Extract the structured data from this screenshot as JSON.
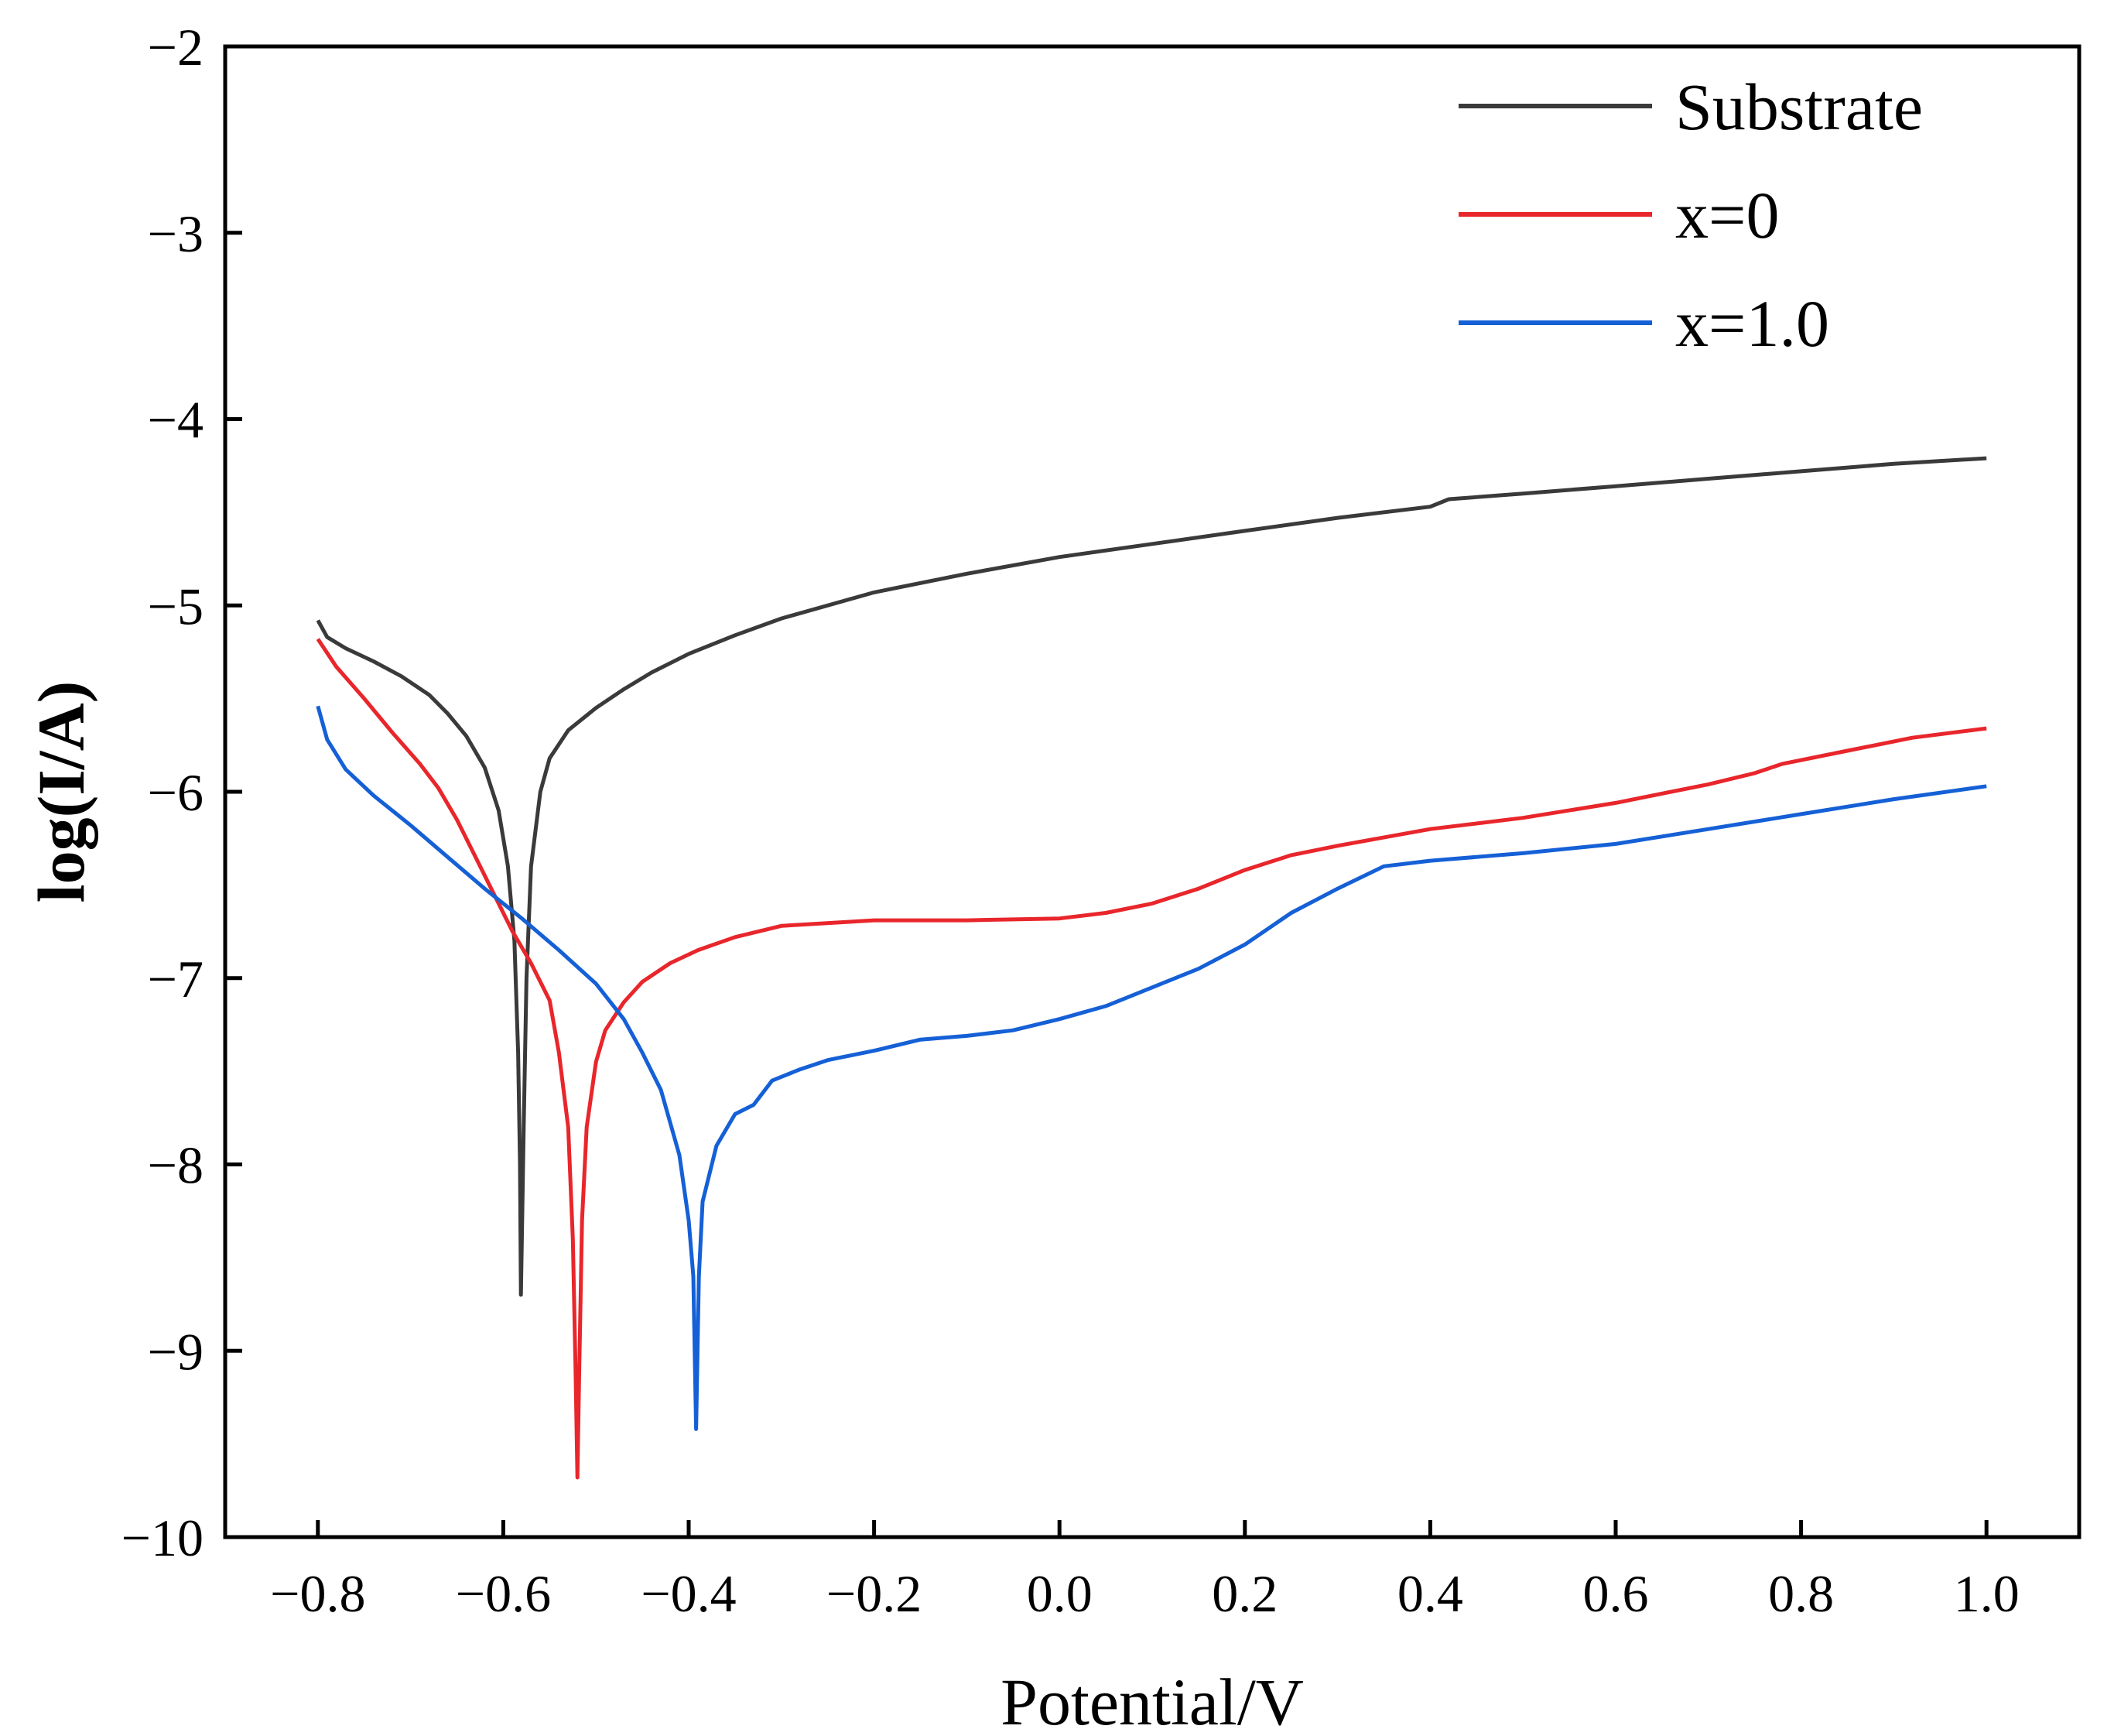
{
  "chart_data": {
    "type": "line",
    "title": "",
    "xlabel": "Potential/V",
    "ylabel": "log(I/A)",
    "xlim": [
      -0.9,
      1.1
    ],
    "ylim": [
      -10,
      -2
    ],
    "grid": false,
    "legend_position": "top-right",
    "x_ticks": [
      {
        "value": -0.8,
        "label": "−0.8"
      },
      {
        "value": -0.6,
        "label": "−0.6"
      },
      {
        "value": -0.4,
        "label": "−0.4"
      },
      {
        "value": -0.2,
        "label": "−0.2"
      },
      {
        "value": 0.0,
        "label": "0.0"
      },
      {
        "value": 0.2,
        "label": "0.2"
      },
      {
        "value": 0.4,
        "label": "0.4"
      },
      {
        "value": 0.6,
        "label": "0.6"
      },
      {
        "value": 0.8,
        "label": "0.8"
      },
      {
        "value": 1.0,
        "label": "1.0"
      }
    ],
    "y_ticks": [
      {
        "value": -2,
        "label": "−2"
      },
      {
        "value": -3,
        "label": "−3"
      },
      {
        "value": -4,
        "label": "−4"
      },
      {
        "value": -5,
        "label": "−5"
      },
      {
        "value": -6,
        "label": "−6"
      },
      {
        "value": -7,
        "label": "−7"
      },
      {
        "value": -8,
        "label": "−8"
      },
      {
        "value": -9,
        "label": "−9"
      },
      {
        "value": -10,
        "label": "−10"
      }
    ],
    "series": [
      {
        "name": "Substrate",
        "color": "#3a3a3a",
        "points": [
          [
            -0.8,
            -5.08
          ],
          [
            -0.79,
            -5.17
          ],
          [
            -0.77,
            -5.23
          ],
          [
            -0.74,
            -5.3
          ],
          [
            -0.71,
            -5.38
          ],
          [
            -0.68,
            -5.48
          ],
          [
            -0.66,
            -5.58
          ],
          [
            -0.64,
            -5.7
          ],
          [
            -0.62,
            -5.87
          ],
          [
            -0.605,
            -6.1
          ],
          [
            -0.595,
            -6.4
          ],
          [
            -0.588,
            -6.8
          ],
          [
            -0.584,
            -7.4
          ],
          [
            -0.582,
            -8.0
          ],
          [
            -0.581,
            -8.7
          ],
          [
            -0.578,
            -7.8
          ],
          [
            -0.575,
            -7.0
          ],
          [
            -0.57,
            -6.4
          ],
          [
            -0.56,
            -6.0
          ],
          [
            -0.55,
            -5.82
          ],
          [
            -0.53,
            -5.67
          ],
          [
            -0.5,
            -5.55
          ],
          [
            -0.47,
            -5.45
          ],
          [
            -0.44,
            -5.36
          ],
          [
            -0.4,
            -5.26
          ],
          [
            -0.35,
            -5.16
          ],
          [
            -0.3,
            -5.07
          ],
          [
            -0.2,
            -4.93
          ],
          [
            -0.1,
            -4.83
          ],
          [
            0.0,
            -4.74
          ],
          [
            0.1,
            -4.67
          ],
          [
            0.2,
            -4.6
          ],
          [
            0.3,
            -4.53
          ],
          [
            0.4,
            -4.47
          ],
          [
            0.42,
            -4.43
          ],
          [
            0.5,
            -4.4
          ],
          [
            0.6,
            -4.36
          ],
          [
            0.7,
            -4.32
          ],
          [
            0.8,
            -4.28
          ],
          [
            0.9,
            -4.24
          ],
          [
            1.0,
            -4.21
          ]
        ]
      },
      {
        "name": "x=0",
        "color": "#e8262b",
        "points": [
          [
            -0.8,
            -5.18
          ],
          [
            -0.78,
            -5.33
          ],
          [
            -0.75,
            -5.5
          ],
          [
            -0.72,
            -5.68
          ],
          [
            -0.69,
            -5.85
          ],
          [
            -0.67,
            -5.98
          ],
          [
            -0.65,
            -6.15
          ],
          [
            -0.63,
            -6.35
          ],
          [
            -0.61,
            -6.55
          ],
          [
            -0.59,
            -6.75
          ],
          [
            -0.57,
            -6.92
          ],
          [
            -0.55,
            -7.12
          ],
          [
            -0.54,
            -7.4
          ],
          [
            -0.53,
            -7.8
          ],
          [
            -0.525,
            -8.4
          ],
          [
            -0.522,
            -9.1
          ],
          [
            -0.52,
            -9.68
          ],
          [
            -0.518,
            -9.1
          ],
          [
            -0.515,
            -8.3
          ],
          [
            -0.51,
            -7.8
          ],
          [
            -0.5,
            -7.45
          ],
          [
            -0.49,
            -7.28
          ],
          [
            -0.47,
            -7.13
          ],
          [
            -0.45,
            -7.02
          ],
          [
            -0.42,
            -6.92
          ],
          [
            -0.39,
            -6.85
          ],
          [
            -0.35,
            -6.78
          ],
          [
            -0.3,
            -6.72
          ],
          [
            -0.2,
            -6.69
          ],
          [
            -0.1,
            -6.69
          ],
          [
            0.0,
            -6.68
          ],
          [
            0.05,
            -6.65
          ],
          [
            0.1,
            -6.6
          ],
          [
            0.15,
            -6.52
          ],
          [
            0.2,
            -6.42
          ],
          [
            0.25,
            -6.34
          ],
          [
            0.3,
            -6.29
          ],
          [
            0.4,
            -6.2
          ],
          [
            0.5,
            -6.14
          ],
          [
            0.6,
            -6.06
          ],
          [
            0.7,
            -5.96
          ],
          [
            0.75,
            -5.9
          ],
          [
            0.78,
            -5.85
          ],
          [
            0.85,
            -5.78
          ],
          [
            0.92,
            -5.71
          ],
          [
            1.0,
            -5.66
          ]
        ]
      },
      {
        "name": "x=1.0",
        "color": "#1560d6",
        "points": [
          [
            -0.8,
            -5.54
          ],
          [
            -0.79,
            -5.72
          ],
          [
            -0.77,
            -5.88
          ],
          [
            -0.74,
            -6.02
          ],
          [
            -0.7,
            -6.18
          ],
          [
            -0.66,
            -6.35
          ],
          [
            -0.62,
            -6.52
          ],
          [
            -0.58,
            -6.68
          ],
          [
            -0.54,
            -6.85
          ],
          [
            -0.5,
            -7.03
          ],
          [
            -0.47,
            -7.22
          ],
          [
            -0.45,
            -7.4
          ],
          [
            -0.43,
            -7.6
          ],
          [
            -0.41,
            -7.95
          ],
          [
            -0.4,
            -8.3
          ],
          [
            -0.395,
            -8.6
          ],
          [
            -0.392,
            -9.42
          ],
          [
            -0.389,
            -8.6
          ],
          [
            -0.385,
            -8.2
          ],
          [
            -0.37,
            -7.9
          ],
          [
            -0.35,
            -7.73
          ],
          [
            -0.33,
            -7.68
          ],
          [
            -0.31,
            -7.55
          ],
          [
            -0.28,
            -7.49
          ],
          [
            -0.25,
            -7.44
          ],
          [
            -0.2,
            -7.39
          ],
          [
            -0.15,
            -7.33
          ],
          [
            -0.1,
            -7.31
          ],
          [
            -0.05,
            -7.28
          ],
          [
            0.0,
            -7.22
          ],
          [
            0.05,
            -7.15
          ],
          [
            0.1,
            -7.05
          ],
          [
            0.15,
            -6.95
          ],
          [
            0.2,
            -6.82
          ],
          [
            0.25,
            -6.65
          ],
          [
            0.3,
            -6.52
          ],
          [
            0.35,
            -6.4
          ],
          [
            0.4,
            -6.37
          ],
          [
            0.5,
            -6.33
          ],
          [
            0.6,
            -6.28
          ],
          [
            0.7,
            -6.2
          ],
          [
            0.8,
            -6.12
          ],
          [
            0.9,
            -6.04
          ],
          [
            1.0,
            -5.97
          ]
        ]
      }
    ]
  }
}
